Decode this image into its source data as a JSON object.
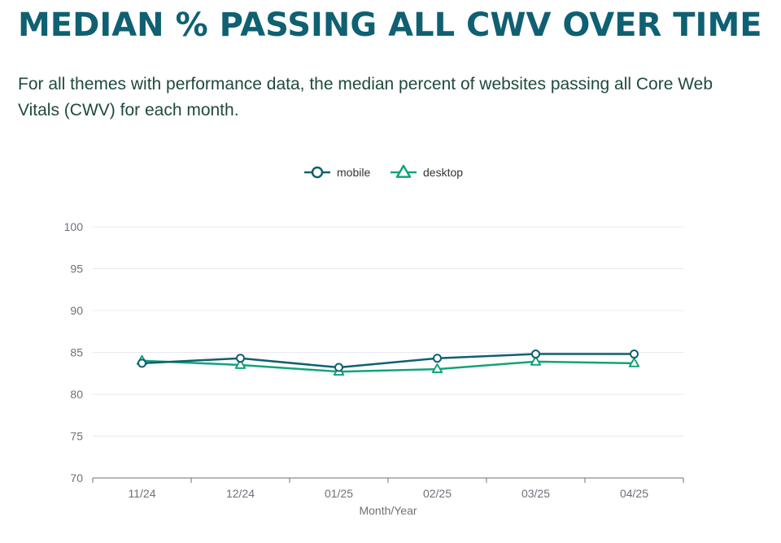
{
  "header": {
    "title": "MEDIAN % PASSING ALL CWV OVER TIME",
    "subtitle": "For all themes with performance data, the median percent of websites passing all Core Web Vitals (CWV) for each month."
  },
  "colors": {
    "title": "#0f6072",
    "subtitle": "#1f4a3e",
    "mobile": "#0f6072",
    "desktop": "#12a37a",
    "grid": "#e6e8f0",
    "axis": "#6e7079"
  },
  "chart_data": {
    "type": "line",
    "title": "MEDIAN % PASSING ALL CWV OVER TIME",
    "xlabel": "Month/Year",
    "ylabel": "",
    "categories": [
      "11/24",
      "12/24",
      "01/25",
      "02/25",
      "03/25",
      "04/25"
    ],
    "series": [
      {
        "name": "mobile",
        "marker": "circle",
        "values": [
          83.7,
          84.3,
          83.2,
          84.3,
          84.8,
          84.8
        ]
      },
      {
        "name": "desktop",
        "marker": "triangle",
        "values": [
          84.0,
          83.5,
          82.7,
          83.0,
          83.9,
          83.7
        ]
      }
    ],
    "ylim": [
      70,
      100
    ],
    "yticks": [
      70,
      75,
      80,
      85,
      90,
      95,
      100
    ],
    "grid": true,
    "legend": "top-center"
  }
}
